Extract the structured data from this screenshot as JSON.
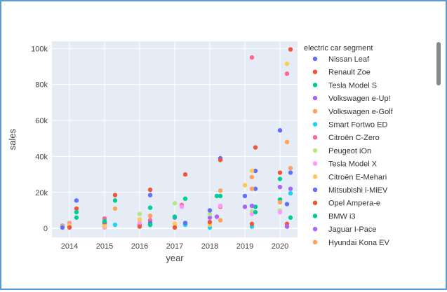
{
  "chart_data": {
    "type": "scatter",
    "title": "",
    "xlabel": "year",
    "ylabel": "sales",
    "xlim": [
      2013.5,
      2020.5
    ],
    "ylim": [
      -5000,
      104000
    ],
    "xticks": [
      2014,
      2015,
      2016,
      2017,
      2018,
      2019,
      2020
    ],
    "xtick_labels": [
      "2014",
      "2015",
      "2016",
      "2017",
      "2018",
      "2019",
      "2020"
    ],
    "yticks": [
      0,
      20000,
      40000,
      60000,
      80000,
      100000
    ],
    "ytick_labels": [
      "0",
      "20k",
      "40k",
      "60k",
      "80k",
      "100k"
    ],
    "grid": true,
    "legend": {
      "title": "electric car segment",
      "placement": "right"
    },
    "series": [
      {
        "name": "Nissan Leaf",
        "color": "#636efa",
        "points": [
          [
            2014.2,
            15500
          ],
          [
            2016.3,
            18500
          ],
          [
            2018.3,
            39000
          ],
          [
            2019.0,
            18000
          ],
          [
            2019.3,
            32000
          ],
          [
            2020.0,
            54500
          ],
          [
            2020.3,
            31000
          ]
        ]
      },
      {
        "name": "Renault Zoe",
        "color": "#EF553B",
        "points": [
          [
            2014.2,
            11000
          ],
          [
            2015.3,
            18500
          ],
          [
            2016.3,
            21500
          ],
          [
            2017.3,
            30000
          ],
          [
            2018.3,
            38000
          ],
          [
            2019.3,
            45000
          ],
          [
            2020.0,
            31000
          ],
          [
            2020.3,
            99500
          ]
        ]
      },
      {
        "name": "Tesla Model S",
        "color": "#00cc96",
        "points": [
          [
            2014.2,
            9000
          ],
          [
            2015.3,
            15500
          ],
          [
            2016.3,
            11500
          ],
          [
            2017.3,
            16500
          ],
          [
            2018.2,
            18000
          ],
          [
            2019.3,
            12000
          ],
          [
            2020.0,
            27500
          ]
        ]
      },
      {
        "name": "Volkswagen e-Up!",
        "color": "#ab63fa",
        "points": [
          [
            2014.0,
            1000
          ],
          [
            2015.0,
            2500
          ],
          [
            2016.0,
            2000
          ],
          [
            2017.0,
            6000
          ],
          [
            2018.0,
            6000
          ],
          [
            2019.2,
            12500
          ],
          [
            2020.3,
            22000
          ]
        ]
      },
      {
        "name": "Volkswagen e-Golf",
        "color": "#FFA15A",
        "points": [
          [
            2014.0,
            3000
          ],
          [
            2015.3,
            11000
          ],
          [
            2016.3,
            7000
          ],
          [
            2017.0,
            2500
          ],
          [
            2018.3,
            21000
          ],
          [
            2019.2,
            28500
          ],
          [
            2020.2,
            48000
          ]
        ]
      },
      {
        "name": "Smart Fortwo ED",
        "color": "#19d3f3",
        "points": [
          [
            2013.8,
            500
          ],
          [
            2015.3,
            2000
          ],
          [
            2016.3,
            2000
          ],
          [
            2017.3,
            2000
          ],
          [
            2018.0,
            500
          ],
          [
            2019.2,
            1000
          ],
          [
            2020.3,
            19500
          ]
        ]
      },
      {
        "name": "Citroën C-Zero",
        "color": "#FF6692",
        "points": [
          [
            2013.8,
            1500
          ],
          [
            2015.0,
            5500
          ],
          [
            2016.3,
            4500
          ],
          [
            2017.2,
            13000
          ],
          [
            2018.3,
            12000
          ],
          [
            2019.2,
            95000
          ],
          [
            2020.2,
            86000
          ]
        ]
      },
      {
        "name": "Peugeot iOn",
        "color": "#B6E880",
        "points": [
          [
            2013.8,
            1000
          ],
          [
            2015.0,
            1000
          ],
          [
            2016.0,
            8000
          ],
          [
            2017.0,
            14000
          ],
          [
            2018.0,
            8000
          ],
          [
            2019.2,
            9500
          ],
          [
            2020.0,
            10000
          ]
        ]
      },
      {
        "name": "Tesla Model X",
        "color": "#FF97FF",
        "points": [
          [
            2014.0,
            2000
          ],
          [
            2015.0,
            500
          ],
          [
            2016.0,
            3000
          ],
          [
            2017.2,
            12000
          ],
          [
            2018.3,
            12500
          ],
          [
            2019.2,
            8000
          ],
          [
            2020.0,
            9000
          ]
        ]
      },
      {
        "name": "Citroën E-Mehari",
        "color": "#FECB52",
        "points": [
          [
            2014.0,
            1500
          ],
          [
            2015.0,
            1500
          ],
          [
            2016.0,
            5000
          ],
          [
            2017.0,
            2500
          ],
          [
            2018.0,
            2000
          ],
          [
            2019.0,
            24000
          ],
          [
            2019.2,
            32000
          ],
          [
            2020.2,
            91500
          ]
        ]
      },
      {
        "name": "Mitsubishi i-MiEV",
        "color": "#636efa",
        "points": [
          [
            2013.8,
            500
          ],
          [
            2015.0,
            3500
          ],
          [
            2016.3,
            3000
          ],
          [
            2017.3,
            3000
          ],
          [
            2018.0,
            10000
          ],
          [
            2019.3,
            22000
          ],
          [
            2020.2,
            13500
          ]
        ]
      },
      {
        "name": "Opel Ampera-e",
        "color": "#EF553B",
        "points": [
          [
            2014.0,
            500
          ],
          [
            2015.0,
            3500
          ],
          [
            2016.0,
            1000
          ],
          [
            2017.0,
            500
          ],
          [
            2018.0,
            3500
          ],
          [
            2019.2,
            2500
          ],
          [
            2020.2,
            2500
          ]
        ]
      },
      {
        "name": "BMW i3",
        "color": "#00cc96",
        "points": [
          [
            2014.2,
            6000
          ],
          [
            2015.0,
            4000
          ],
          [
            2016.3,
            2000
          ],
          [
            2017.0,
            6500
          ],
          [
            2018.3,
            18000
          ],
          [
            2019.3,
            9000
          ],
          [
            2020.0,
            16000
          ],
          [
            2020.3,
            6000
          ]
        ]
      },
      {
        "name": "Jaguar I-Pace",
        "color": "#ab63fa",
        "points": [
          [
            2018.2,
            6500
          ],
          [
            2019.0,
            12000
          ],
          [
            2020.0,
            23000
          ],
          [
            2020.2,
            1000
          ]
        ]
      },
      {
        "name": "Hyundai Kona EV",
        "color": "#FFA15A",
        "points": [
          [
            2018.3,
            4500
          ],
          [
            2019.2,
            22000
          ],
          [
            2020.0,
            14500
          ],
          [
            2020.3,
            33500
          ]
        ]
      }
    ]
  }
}
